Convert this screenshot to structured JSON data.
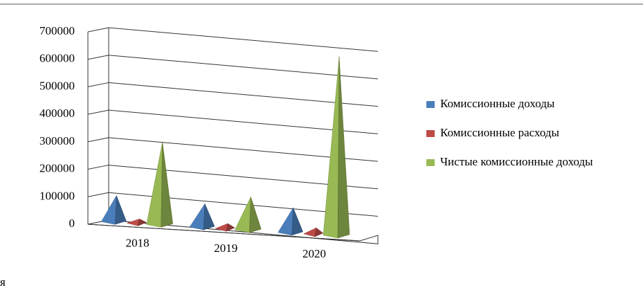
{
  "chart_data": {
    "type": "bar",
    "style": "3d-pyramid",
    "categories": [
      "2018",
      "2019",
      "2020"
    ],
    "series": [
      {
        "name": "Комиссионные доходы",
        "values": [
          95000,
          85000,
          90000
        ],
        "color": "#4a7ebb"
      },
      {
        "name": "Комиссионные расходы",
        "values": [
          15000,
          18000,
          22000
        ],
        "color": "#be4b48"
      },
      {
        "name": "Чистые комиссионные доходы",
        "values": [
          300000,
          120000,
          650000
        ],
        "color": "#98b954"
      }
    ],
    "ylim": [
      0,
      700000
    ],
    "yticks": [
      0,
      100000,
      200000,
      300000,
      400000,
      500000,
      600000,
      700000
    ],
    "ytick_labels": [
      "0",
      "100000",
      "200000",
      "300000",
      "400000",
      "500000",
      "600000",
      "700000"
    ],
    "grid": true,
    "legend": "right"
  },
  "legend_items": [
    {
      "label": "Комиссионные доходы",
      "color": "#4a7ebb"
    },
    {
      "label": "Комиссионные расходы",
      "color": "#be4b48"
    },
    {
      "label": "Чистые комиссионные доходы",
      "color": "#98b954"
    }
  ],
  "stray_text": "я"
}
